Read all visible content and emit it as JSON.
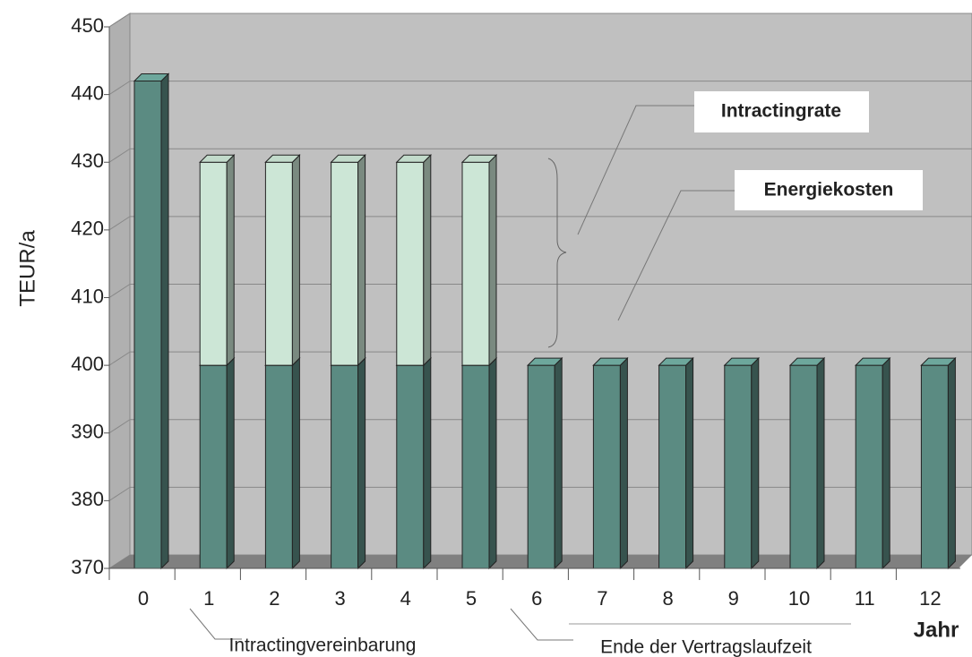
{
  "chart_data": {
    "type": "bar3d_stacked",
    "y_label": "TEUR/a",
    "x_label": "Jahr",
    "categories": [
      "0",
      "1",
      "2",
      "3",
      "4",
      "5",
      "6",
      "7",
      "8",
      "9",
      "10",
      "11",
      "12"
    ],
    "series": [
      {
        "name": "Energiekosten",
        "color": "#5b8b82",
        "values": [
          442,
          400,
          400,
          400,
          400,
          400,
          400,
          400,
          400,
          400,
          400,
          400,
          400
        ]
      },
      {
        "name": "Intractingrate",
        "color": "#cce6d6",
        "values": [
          0,
          30,
          30,
          30,
          30,
          30,
          0,
          0,
          0,
          0,
          0,
          0,
          0
        ]
      }
    ],
    "ylim": [
      370,
      450
    ],
    "yticks": [
      370,
      380,
      390,
      400,
      410,
      420,
      430,
      440,
      450
    ],
    "grid": true,
    "annotations": [
      "Intractingvereinbarung",
      "Ende der Vertragslaufzeit"
    ]
  }
}
